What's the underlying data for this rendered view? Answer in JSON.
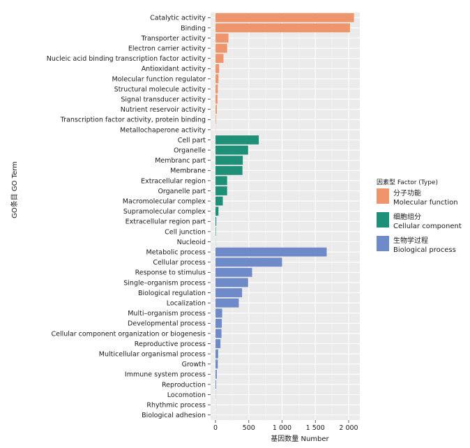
{
  "chart_data": {
    "type": "bar",
    "orientation": "horizontal",
    "xlabel": "基因数量 Number",
    "ylabel": "GO条目 GO Term",
    "xlim": [
      0,
      2150
    ],
    "xticks": [
      0,
      500,
      1000,
      1500,
      2000
    ],
    "xtick_labels": [
      "0",
      "500",
      "1 000",
      "1 500",
      "2 000"
    ],
    "grid": true,
    "legend_position": "right",
    "legend": {
      "title": "因素型 Factor (Type)",
      "entries": [
        {
          "key": "mf",
          "label_cn": "分子功能",
          "label_en": "Molecular function",
          "color": "#ee956b"
        },
        {
          "key": "cc",
          "label_cn": "细胞组分",
          "label_en": "Cellular component",
          "color": "#1f9078"
        },
        {
          "key": "bp",
          "label_cn": "生物学过程",
          "label_en": "Biological process",
          "color": "#6e8ac8"
        }
      ]
    },
    "bars": [
      {
        "term": "Catalytic activity",
        "value": 2080,
        "type": "mf"
      },
      {
        "term": "Binding",
        "value": 2020,
        "type": "mf"
      },
      {
        "term": "Transporter activity",
        "value": 195,
        "type": "mf"
      },
      {
        "term": "Electron carrier activity",
        "value": 175,
        "type": "mf"
      },
      {
        "term": "Nucleic acid binding transcription factor activity",
        "value": 120,
        "type": "mf"
      },
      {
        "term": "Antioxidant activity",
        "value": 55,
        "type": "mf"
      },
      {
        "term": "Molecular function regulator",
        "value": 45,
        "type": "mf"
      },
      {
        "term": "Structural molecule activity",
        "value": 35,
        "type": "mf"
      },
      {
        "term": "Signal transducer activity",
        "value": 30,
        "type": "mf"
      },
      {
        "term": "Nutrient reservoir activity",
        "value": 20,
        "type": "mf"
      },
      {
        "term": "Transcription factor activity, protein binding",
        "value": 8,
        "type": "mf"
      },
      {
        "term": "Metallochaperone activity",
        "value": 3,
        "type": "mf"
      },
      {
        "term": "Cell part",
        "value": 650,
        "type": "cc"
      },
      {
        "term": "Organelle",
        "value": 490,
        "type": "cc"
      },
      {
        "term": "Membranc part",
        "value": 410,
        "type": "cc"
      },
      {
        "term": "Membrane",
        "value": 405,
        "type": "cc"
      },
      {
        "term": "Extracellular region",
        "value": 175,
        "type": "cc"
      },
      {
        "term": "Organelle part",
        "value": 175,
        "type": "cc"
      },
      {
        "term": "Macromolecular complex",
        "value": 110,
        "type": "cc"
      },
      {
        "term": "Supramolecular complex",
        "value": 45,
        "type": "cc"
      },
      {
        "term": "Extracellular region part",
        "value": 12,
        "type": "cc"
      },
      {
        "term": "Cell junction",
        "value": 6,
        "type": "cc"
      },
      {
        "term": "Nucleoid",
        "value": 2,
        "type": "cc"
      },
      {
        "term": "Metabolic process",
        "value": 1670,
        "type": "bp"
      },
      {
        "term": "Cellular process",
        "value": 1000,
        "type": "bp"
      },
      {
        "term": "Response to stimulus",
        "value": 550,
        "type": "bp"
      },
      {
        "term": "Single–organism process",
        "value": 490,
        "type": "bp"
      },
      {
        "term": "Biological regulation",
        "value": 400,
        "type": "bp"
      },
      {
        "term": "Localization",
        "value": 350,
        "type": "bp"
      },
      {
        "term": "Multi–organism process",
        "value": 100,
        "type": "bp"
      },
      {
        "term": "Developmental process",
        "value": 95,
        "type": "bp"
      },
      {
        "term": "Cellular component organization or biogenesis",
        "value": 90,
        "type": "bp"
      },
      {
        "term": "Reproductive process",
        "value": 75,
        "type": "bp"
      },
      {
        "term": "Multicellular organismal process",
        "value": 40,
        "type": "bp"
      },
      {
        "term": "Growth",
        "value": 35,
        "type": "bp"
      },
      {
        "term": "Immune system process",
        "value": 20,
        "type": "bp"
      },
      {
        "term": "Reproduction",
        "value": 10,
        "type": "bp"
      },
      {
        "term": "Locomotion",
        "value": 3,
        "type": "bp"
      },
      {
        "term": "Rhythmic process",
        "value": 2,
        "type": "bp"
      },
      {
        "term": "Biological adhesion",
        "value": 2,
        "type": "bp"
      }
    ]
  }
}
